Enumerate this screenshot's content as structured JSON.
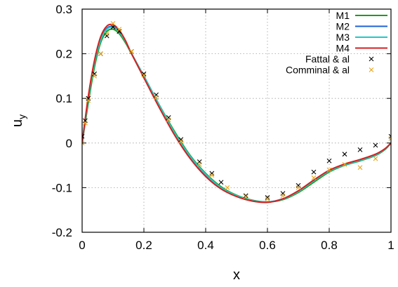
{
  "chart_data": {
    "type": "line",
    "xlabel": "x",
    "ylabel": {
      "main": "u",
      "sub": "y"
    },
    "xlim": [
      0,
      1
    ],
    "ylim": [
      -0.2,
      0.3
    ],
    "xticks": [
      0,
      0.2,
      0.4,
      0.6,
      0.8,
      1
    ],
    "xtick_labels": [
      "0",
      "0.2",
      "0.4",
      "0.6",
      "0.8",
      "1"
    ],
    "yticks": [
      -0.2,
      -0.1,
      0,
      0.1,
      0.2,
      0.3
    ],
    "ytick_labels": [
      "-0.2",
      "-0.1",
      "0",
      "0.1",
      "0.2",
      "0.3"
    ],
    "grid": true,
    "legend_position": "top-right",
    "series": [
      {
        "name": "M1",
        "kind": "line",
        "color": "#1a9e1a",
        "x": [
          0,
          0.02,
          0.04,
          0.06,
          0.08,
          0.1,
          0.12,
          0.14,
          0.16,
          0.2,
          0.25,
          0.3,
          0.35,
          0.4,
          0.45,
          0.5,
          0.55,
          0.6,
          0.65,
          0.7,
          0.75,
          0.8,
          0.85,
          0.9,
          0.95,
          0.98,
          1.0
        ],
        "y": [
          0,
          0.09,
          0.17,
          0.225,
          0.25,
          0.255,
          0.245,
          0.225,
          0.2,
          0.15,
          0.085,
          0.025,
          -0.028,
          -0.068,
          -0.098,
          -0.117,
          -0.128,
          -0.132,
          -0.127,
          -0.111,
          -0.088,
          -0.065,
          -0.05,
          -0.04,
          -0.028,
          -0.015,
          0
        ]
      },
      {
        "name": "M2",
        "kind": "line",
        "color": "#1e62d6",
        "x": [
          0,
          0.02,
          0.04,
          0.06,
          0.08,
          0.1,
          0.12,
          0.14,
          0.16,
          0.2,
          0.25,
          0.3,
          0.35,
          0.4,
          0.45,
          0.5,
          0.55,
          0.6,
          0.65,
          0.7,
          0.75,
          0.8,
          0.85,
          0.9,
          0.95,
          0.98,
          1.0
        ],
        "y": [
          0,
          0.1,
          0.18,
          0.232,
          0.257,
          0.261,
          0.25,
          0.228,
          0.2,
          0.148,
          0.082,
          0.02,
          -0.032,
          -0.072,
          -0.101,
          -0.119,
          -0.129,
          -0.132,
          -0.125,
          -0.108,
          -0.084,
          -0.062,
          -0.048,
          -0.038,
          -0.026,
          -0.014,
          0
        ]
      },
      {
        "name": "M3",
        "kind": "line",
        "color": "#22c8c8",
        "x": [
          0,
          0.02,
          0.04,
          0.06,
          0.08,
          0.1,
          0.12,
          0.14,
          0.16,
          0.2,
          0.25,
          0.3,
          0.35,
          0.4,
          0.45,
          0.5,
          0.55,
          0.6,
          0.65,
          0.7,
          0.75,
          0.8,
          0.85,
          0.9,
          0.95,
          0.98,
          1.0
        ],
        "y": [
          0,
          0.098,
          0.178,
          0.23,
          0.255,
          0.259,
          0.249,
          0.228,
          0.201,
          0.15,
          0.084,
          0.022,
          -0.03,
          -0.07,
          -0.1,
          -0.118,
          -0.129,
          -0.132,
          -0.126,
          -0.109,
          -0.085,
          -0.063,
          -0.049,
          -0.039,
          -0.027,
          -0.014,
          0
        ]
      },
      {
        "name": "M4",
        "kind": "line",
        "color": "#d42020",
        "x": [
          0,
          0.02,
          0.04,
          0.06,
          0.08,
          0.1,
          0.12,
          0.14,
          0.16,
          0.2,
          0.25,
          0.3,
          0.35,
          0.4,
          0.45,
          0.5,
          0.55,
          0.6,
          0.65,
          0.7,
          0.75,
          0.8,
          0.85,
          0.9,
          0.95,
          0.98,
          1.0
        ],
        "y": [
          0,
          0.105,
          0.185,
          0.238,
          0.262,
          0.265,
          0.253,
          0.23,
          0.2,
          0.146,
          0.079,
          0.017,
          -0.035,
          -0.075,
          -0.103,
          -0.12,
          -0.13,
          -0.133,
          -0.125,
          -0.107,
          -0.083,
          -0.061,
          -0.047,
          -0.037,
          -0.025,
          -0.013,
          0
        ]
      },
      {
        "name": "Fattal & al",
        "kind": "marker",
        "marker": "x",
        "color": "#000000",
        "x": [
          0,
          0.01,
          0.02,
          0.04,
          0.06,
          0.08,
          0.1,
          0.12,
          0.16,
          0.2,
          0.24,
          0.28,
          0.32,
          0.38,
          0.42,
          0.45,
          0.53,
          0.6,
          0.65,
          0.7,
          0.75,
          0.8,
          0.85,
          0.9,
          0.95,
          1.0
        ],
        "y": [
          0.015,
          0.05,
          0.1,
          0.155,
          0.2,
          0.24,
          0.26,
          0.25,
          0.205,
          0.155,
          0.108,
          0.057,
          0.008,
          -0.042,
          -0.068,
          -0.088,
          -0.118,
          -0.122,
          -0.113,
          -0.095,
          -0.065,
          -0.04,
          -0.025,
          -0.015,
          -0.005,
          0.015
        ]
      },
      {
        "name": "Comminal & al",
        "kind": "marker",
        "marker": "x",
        "color": "#e8a317",
        "x": [
          0,
          0.01,
          0.02,
          0.04,
          0.06,
          0.08,
          0.1,
          0.12,
          0.16,
          0.2,
          0.24,
          0.28,
          0.32,
          0.38,
          0.42,
          0.47,
          0.53,
          0.6,
          0.65,
          0.7,
          0.75,
          0.8,
          0.85,
          0.9,
          0.95,
          1.0
        ],
        "y": [
          0,
          0.045,
          0.095,
          0.15,
          0.2,
          0.245,
          0.268,
          0.255,
          0.205,
          0.152,
          0.102,
          0.052,
          0.004,
          -0.048,
          -0.072,
          -0.1,
          -0.12,
          -0.125,
          -0.118,
          -0.1,
          -0.078,
          -0.06,
          -0.048,
          -0.055,
          -0.035,
          0.01
        ]
      }
    ]
  }
}
